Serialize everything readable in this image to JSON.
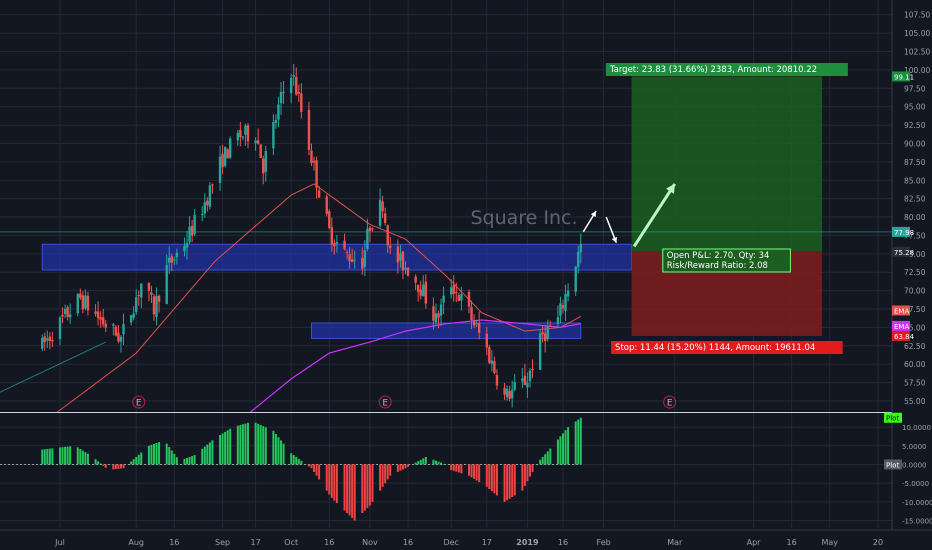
{
  "watermark": "Square Inc.",
  "colors": {
    "background": "#131722",
    "grid": "#242836",
    "up": "#26a69a",
    "down": "#ef5350",
    "ema_short": "#e0524a",
    "ema_long": "#cc33ff",
    "zone": "#2233aa",
    "target_fill": "#1b5e20",
    "stop_fill": "#7f1d1d",
    "hist_up": "#22c55e",
    "hist_down": "#ef4444",
    "axis_text": "#9aa0ad",
    "arrow": "#ffffff",
    "arrow_green": "#b9f6ca"
  },
  "chart_data": {
    "type": "candlestick",
    "price_axis": {
      "ylim": [
        53.5,
        109.5
      ],
      "ticks": [
        "55.00",
        "57.50",
        "60.00",
        "62.50",
        "65.00",
        "67.50",
        "70.00",
        "72.50",
        "75.00",
        "77.50",
        "80.00",
        "82.50",
        "85.00",
        "87.50",
        "90.00",
        "92.50",
        "95.00",
        "97.50",
        "100.00",
        "102.50",
        "105.00",
        "107.50"
      ]
    },
    "time_axis": {
      "labels": [
        {
          "text": "Jul",
          "date": "2018-07-02"
        },
        {
          "text": "Aug",
          "date": "2018-08-01"
        },
        {
          "text": "16",
          "date": "2018-08-16"
        },
        {
          "text": "Sep",
          "date": "2018-09-04"
        },
        {
          "text": "17",
          "date": "2018-09-17"
        },
        {
          "text": "Oct",
          "date": "2018-10-01"
        },
        {
          "text": "16",
          "date": "2018-10-16"
        },
        {
          "text": "Nov",
          "date": "2018-11-01"
        },
        {
          "text": "16",
          "date": "2018-11-16"
        },
        {
          "text": "Dec",
          "date": "2018-12-03"
        },
        {
          "text": "17",
          "date": "2018-12-17"
        },
        {
          "text": "2019",
          "date": "2019-01-02"
        },
        {
          "text": "16",
          "date": "2019-01-16"
        },
        {
          "text": "Feb",
          "date": "2019-02-01"
        },
        {
          "text": "Mar",
          "date": "2019-03-01"
        },
        {
          "text": "Apr",
          "date": "2019-04-01"
        },
        {
          "text": "16",
          "date": "2019-04-16"
        },
        {
          "text": "May",
          "date": "2019-05-01"
        },
        {
          "text": "20",
          "date": "2019-05-20"
        }
      ]
    },
    "anchor_points": [
      [
        "2018-06-25",
        62.5
      ],
      [
        "2018-07-03",
        66.0
      ],
      [
        "2018-07-10",
        69.0
      ],
      [
        "2018-07-18",
        66.0
      ],
      [
        "2018-07-26",
        63.5
      ],
      [
        "2018-08-03",
        71.0
      ],
      [
        "2018-08-08",
        67.5
      ],
      [
        "2018-08-13",
        73.0
      ],
      [
        "2018-08-21",
        77.0
      ],
      [
        "2018-08-28",
        82.0
      ],
      [
        "2018-09-04",
        88.0
      ],
      [
        "2018-09-10",
        91.0
      ],
      [
        "2018-09-17",
        91.5
      ],
      [
        "2018-09-20",
        87.0
      ],
      [
        "2018-09-27",
        96.0
      ],
      [
        "2018-10-01",
        100.0
      ],
      [
        "2018-10-04",
        96.0
      ],
      [
        "2018-10-11",
        85.0
      ],
      [
        "2018-10-16",
        78.0
      ],
      [
        "2018-10-22",
        75.0
      ],
      [
        "2018-10-29",
        74.0
      ],
      [
        "2018-11-01",
        79.0
      ],
      [
        "2018-11-06",
        82.0
      ],
      [
        "2018-11-09",
        75.0
      ],
      [
        "2018-11-16",
        73.0
      ],
      [
        "2018-11-21",
        70.5
      ],
      [
        "2018-11-27",
        66.0
      ],
      [
        "2018-12-03",
        71.0
      ],
      [
        "2018-12-10",
        67.0
      ],
      [
        "2018-12-17",
        62.0
      ],
      [
        "2018-12-24",
        55.5
      ],
      [
        "2019-01-02",
        58.0
      ],
      [
        "2019-01-08",
        64.0
      ],
      [
        "2019-01-14",
        66.0
      ],
      [
        "2019-01-18",
        70.5
      ],
      [
        "2019-01-23",
        76.0
      ]
    ],
    "ema_short": [
      [
        "2018-07-01",
        53.5
      ],
      [
        "2018-08-01",
        61.5
      ],
      [
        "2018-09-01",
        74.0
      ],
      [
        "2018-10-01",
        83.0
      ],
      [
        "2018-10-10",
        84.5
      ],
      [
        "2018-10-20",
        82.0
      ],
      [
        "2018-11-01",
        79.0
      ],
      [
        "2018-11-15",
        77.0
      ],
      [
        "2018-12-01",
        72.0
      ],
      [
        "2018-12-15",
        67.0
      ],
      [
        "2019-01-01",
        64.5
      ],
      [
        "2019-01-15",
        65.0
      ],
      [
        "2019-01-23",
        66.5
      ]
    ],
    "ema_long": [
      [
        "2018-09-15",
        53.5
      ],
      [
        "2018-10-01",
        58.0
      ],
      [
        "2018-10-16",
        61.5
      ],
      [
        "2018-11-01",
        63.0
      ],
      [
        "2018-11-15",
        64.5
      ],
      [
        "2018-12-01",
        65.5
      ],
      [
        "2018-12-15",
        66.0
      ],
      [
        "2019-01-01",
        65.5
      ],
      [
        "2019-01-15",
        65.0
      ],
      [
        "2019-01-23",
        65.5
      ]
    ],
    "zones": [
      {
        "from": "2018-06-25",
        "to": "2019-02-12",
        "low": 72.8,
        "high": 76.3
      },
      {
        "from": "2018-10-09",
        "to": "2019-01-23",
        "low": 63.5,
        "high": 65.6
      }
    ],
    "position": {
      "from": "2019-02-12",
      "to": "2019-04-28",
      "entry": 75.28,
      "target": 99.11,
      "stop": 63.84,
      "target_label": "Target: 23.83 (31.66%) 2383, Amount: 20810.22",
      "stop_label": "Stop: 11.44 (15.20%) 1144, Amount: 19611.04",
      "pnl_line1": "Open P&L: 2.70, Qty: 34",
      "pnl_line2": "Risk/Reward Ratio: 2.08"
    },
    "price_tags": {
      "target": "99.11",
      "last": "77.98",
      "entry": "75.28",
      "stop": "63.84",
      "ema_a": "EMA",
      "ema_b": "EMA"
    },
    "earnings_markers": [
      {
        "date": "2018-08-02",
        "label": "E"
      },
      {
        "date": "2018-11-07",
        "label": "E"
      },
      {
        "date": "2019-02-27",
        "label": "E"
      }
    ],
    "arrows": [
      {
        "from": [
          "2019-01-24",
          78.0
        ],
        "to": [
          "2019-01-29",
          80.8
        ],
        "color": "white"
      },
      {
        "from": [
          "2019-02-02",
          80.0
        ],
        "to": [
          "2019-02-06",
          76.5
        ],
        "color": "white"
      },
      {
        "from": [
          "2019-02-13",
          76.0
        ],
        "to": [
          "2019-03-01",
          84.5
        ],
        "color": "green"
      }
    ],
    "oscillator": {
      "ylim": [
        -17.0,
        13.5
      ],
      "ticks": [
        "10.0000",
        "5.0000",
        "0.0000",
        "-5.0000",
        "-10.0000",
        "-15.0000"
      ],
      "tag_top": "Plot",
      "tag_zero": "Plot",
      "anchors": [
        [
          "2018-06-25",
          4.0
        ],
        [
          "2018-07-08",
          5.0
        ],
        [
          "2018-07-15",
          2.0
        ],
        [
          "2018-07-21",
          -1.5
        ],
        [
          "2018-07-27",
          -1.0
        ],
        [
          "2018-08-06",
          5.0
        ],
        [
          "2018-08-12",
          6.5
        ],
        [
          "2018-08-18",
          1.0
        ],
        [
          "2018-08-24",
          2.5
        ],
        [
          "2018-09-01",
          7.0
        ],
        [
          "2018-09-08",
          10.0
        ],
        [
          "2018-09-16",
          11.5
        ],
        [
          "2018-09-24",
          9.0
        ],
        [
          "2018-10-01",
          3.0
        ],
        [
          "2018-10-09",
          -1.0
        ],
        [
          "2018-10-17",
          -9.0
        ],
        [
          "2018-10-26",
          -15.0
        ],
        [
          "2018-11-01",
          -11.0
        ],
        [
          "2018-11-09",
          -3.0
        ],
        [
          "2018-11-15",
          -1.0
        ],
        [
          "2018-11-23",
          2.0
        ],
        [
          "2018-11-29",
          0.5
        ],
        [
          "2018-12-03",
          -1.5
        ],
        [
          "2018-12-10",
          -3.0
        ],
        [
          "2018-12-17",
          -6.0
        ],
        [
          "2018-12-24",
          -10.0
        ],
        [
          "2018-12-31",
          -7.0
        ],
        [
          "2019-01-06",
          0.5
        ],
        [
          "2019-01-12",
          5.0
        ],
        [
          "2019-01-18",
          10.0
        ],
        [
          "2019-01-23",
          12.5
        ]
      ]
    }
  }
}
